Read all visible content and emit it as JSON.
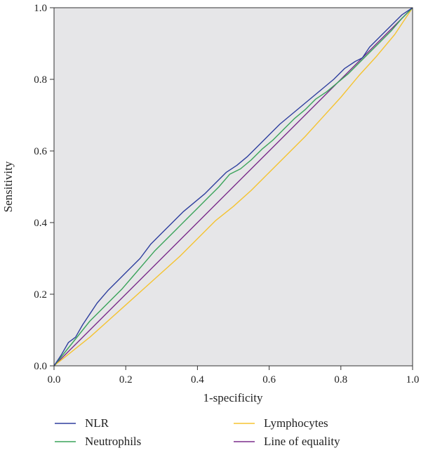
{
  "chart_data": {
    "type": "line",
    "title": "",
    "xlabel": "1-specificity",
    "ylabel": "Sensitivity",
    "xlim": [
      0,
      1
    ],
    "ylim": [
      0,
      1
    ],
    "xticks": [
      "0.0",
      "0.2",
      "0.4",
      "0.6",
      "0.8",
      "1.0"
    ],
    "yticks": [
      "0.0",
      "0.2",
      "0.4",
      "0.6",
      "0.8",
      "1.0"
    ],
    "grid": false,
    "plot_background": "#e6e6e8",
    "legend_position": "bottom",
    "series": [
      {
        "name": "NLR",
        "color": "#2e3f9e",
        "x": [
          0,
          0.02,
          0.04,
          0.06,
          0.08,
          0.1,
          0.12,
          0.15,
          0.18,
          0.21,
          0.24,
          0.27,
          0.3,
          0.33,
          0.36,
          0.39,
          0.42,
          0.45,
          0.48,
          0.51,
          0.54,
          0.57,
          0.6,
          0.63,
          0.66,
          0.69,
          0.72,
          0.75,
          0.78,
          0.81,
          0.84,
          0.86,
          0.88,
          0.91,
          0.94,
          0.97,
          1.0
        ],
        "y": [
          0,
          0.03,
          0.065,
          0.08,
          0.115,
          0.145,
          0.175,
          0.21,
          0.24,
          0.27,
          0.3,
          0.34,
          0.37,
          0.4,
          0.43,
          0.455,
          0.48,
          0.51,
          0.54,
          0.56,
          0.585,
          0.615,
          0.645,
          0.675,
          0.7,
          0.725,
          0.75,
          0.775,
          0.8,
          0.83,
          0.85,
          0.86,
          0.89,
          0.92,
          0.95,
          0.98,
          1.0
        ]
      },
      {
        "name": "Neutrophils",
        "color": "#3aa35a",
        "x": [
          0,
          0.02,
          0.04,
          0.06,
          0.08,
          0.1,
          0.13,
          0.16,
          0.19,
          0.22,
          0.25,
          0.28,
          0.31,
          0.34,
          0.37,
          0.4,
          0.43,
          0.46,
          0.49,
          0.52,
          0.55,
          0.58,
          0.61,
          0.64,
          0.67,
          0.7,
          0.73,
          0.76,
          0.79,
          0.82,
          0.85,
          0.88,
          0.91,
          0.94,
          0.97,
          1.0
        ],
        "y": [
          0,
          0.025,
          0.05,
          0.075,
          0.1,
          0.125,
          0.155,
          0.185,
          0.215,
          0.25,
          0.285,
          0.32,
          0.35,
          0.38,
          0.41,
          0.44,
          0.47,
          0.5,
          0.535,
          0.55,
          0.575,
          0.605,
          0.63,
          0.66,
          0.69,
          0.715,
          0.745,
          0.765,
          0.79,
          0.815,
          0.845,
          0.875,
          0.905,
          0.935,
          0.97,
          1.0
        ]
      },
      {
        "name": "Lymphocytes",
        "color": "#f5c330",
        "x": [
          0,
          0.05,
          0.1,
          0.15,
          0.2,
          0.25,
          0.3,
          0.35,
          0.4,
          0.45,
          0.5,
          0.55,
          0.6,
          0.65,
          0.7,
          0.75,
          0.8,
          0.85,
          0.9,
          0.95,
          1.0
        ],
        "y": [
          0,
          0.04,
          0.08,
          0.125,
          0.17,
          0.215,
          0.26,
          0.305,
          0.355,
          0.405,
          0.445,
          0.49,
          0.54,
          0.59,
          0.64,
          0.695,
          0.75,
          0.81,
          0.865,
          0.925,
          1.0
        ]
      },
      {
        "name": "Line of equality",
        "color": "#7b2d8b",
        "x": [
          0,
          1
        ],
        "y": [
          0,
          1
        ]
      }
    ]
  }
}
